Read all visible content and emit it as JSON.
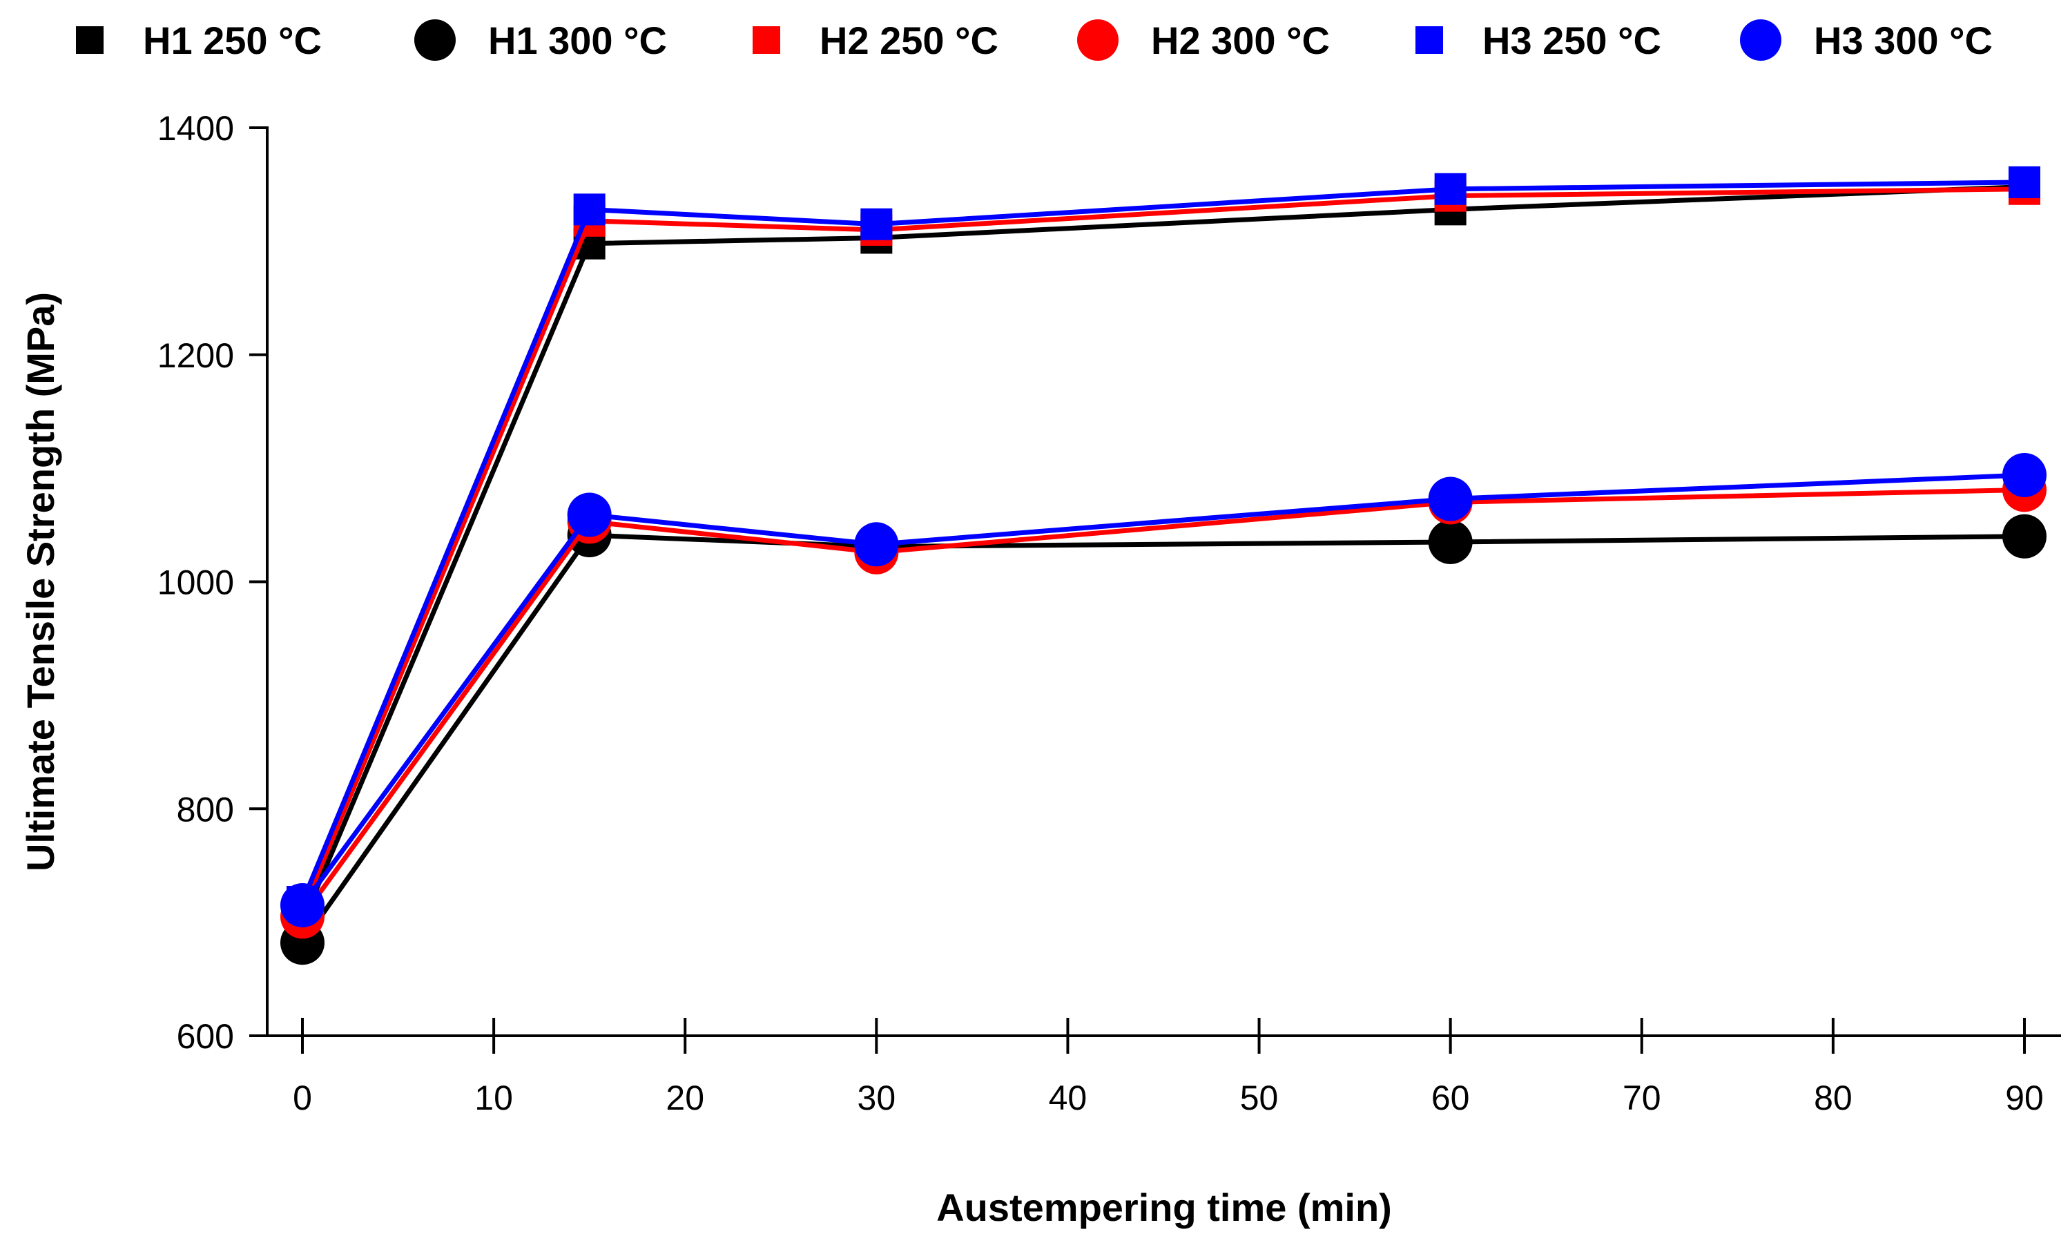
{
  "chart_data": {
    "type": "line",
    "title": "",
    "xlabel": "Austempering time (min)",
    "ylabel": "Ultimate Tensile Strength (MPa)",
    "xlim": [
      0,
      90
    ],
    "ylim": [
      600,
      1400
    ],
    "xticks": [
      0,
      10,
      20,
      30,
      40,
      50,
      60,
      70,
      80,
      90
    ],
    "xtick_labels": [
      "0",
      "10",
      "20",
      "30",
      "40",
      "50",
      "60",
      "70",
      "80",
      "90"
    ],
    "yticks": [
      600,
      800,
      1000,
      1200,
      1400
    ],
    "ytick_labels": [
      "600",
      "800",
      "1000",
      "1200",
      "1400"
    ],
    "grid": false,
    "legend_position": "top",
    "x": [
      0,
      15,
      30,
      60,
      90
    ],
    "series": [
      {
        "name": "H1 250 °C",
        "marker": "square",
        "color": "#000000",
        "values": [
          700,
          1298,
          1303,
          1328,
          1348
        ]
      },
      {
        "name": "H1 300 °C",
        "marker": "circle",
        "color": "#000000",
        "values": [
          682,
          1041,
          1031,
          1035,
          1040
        ]
      },
      {
        "name": "H2 250 °C",
        "marker": "square",
        "color": "#ff0000",
        "values": [
          710,
          1318,
          1310,
          1340,
          1346
        ]
      },
      {
        "name": "H2 300 °C",
        "marker": "circle",
        "color": "#ff0000",
        "values": [
          705,
          1053,
          1026,
          1070,
          1081
        ]
      },
      {
        "name": "H3 250 °C",
        "marker": "square",
        "color": "#0000ff",
        "values": [
          718,
          1328,
          1315,
          1346,
          1352
        ]
      },
      {
        "name": "H3 300 °C",
        "marker": "circle",
        "color": "#0000ff",
        "values": [
          715,
          1059,
          1033,
          1073,
          1094
        ]
      }
    ]
  }
}
